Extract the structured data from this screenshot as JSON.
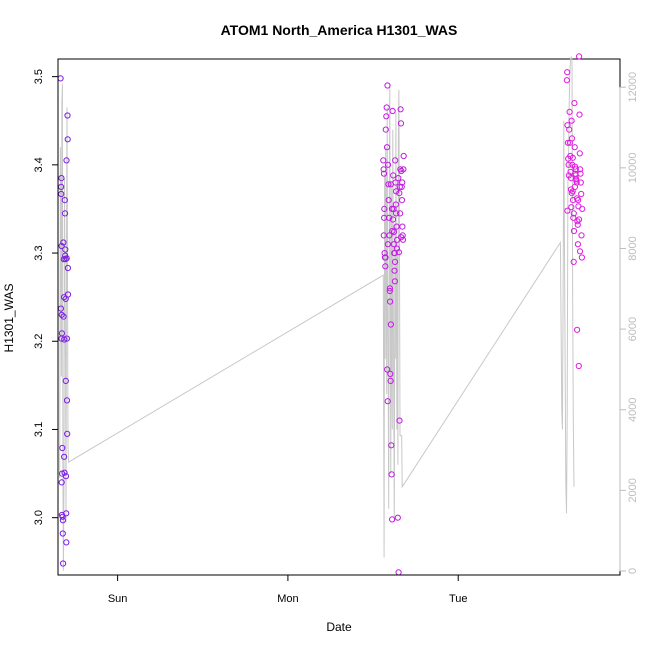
{
  "chart_data": {
    "type": "scatter",
    "title": "ATOM1 North_America H1301_WAS",
    "xlabel": "Date",
    "ylabel": "H1301_WAS",
    "x_ticks": [
      "Sun",
      "Mon",
      "Tue"
    ],
    "xlim": [
      -1.35,
      1.95
    ],
    "ylim": [
      2.935,
      3.52
    ],
    "y_ticks": [
      3.0,
      3.1,
      3.2,
      3.3,
      3.4,
      3.5
    ],
    "y2lim": [
      -100,
      12700
    ],
    "y2_ticks": [
      0,
      2000,
      4000,
      6000,
      8000,
      10000,
      12000
    ],
    "grid": false,
    "colors": {
      "series_start": "#7b1ce6",
      "series_end": "#e21ae2",
      "secondary_line": "#c8c8c8",
      "axis": "#000000",
      "secondary_axis": "#bdbdbd"
    },
    "series": [
      {
        "values": [
          [
            -1.335,
            3.498
          ],
          [
            -1.33,
            3.385
          ],
          [
            -1.332,
            3.375
          ],
          [
            -1.331,
            3.367
          ],
          [
            -1.329,
            3.308
          ],
          [
            -1.333,
            3.237
          ],
          [
            -1.328,
            3.23
          ],
          [
            -1.327,
            3.209
          ],
          [
            -1.33,
            3.203
          ],
          [
            -1.325,
            3.079
          ],
          [
            -1.326,
            3.05
          ],
          [
            -1.328,
            3.04
          ],
          [
            -1.327,
            3.003
          ],
          [
            -1.323,
            3.001
          ],
          [
            -1.32,
            2.948
          ],
          [
            -1.322,
            2.982
          ],
          [
            -1.321,
            2.997
          ],
          [
            -1.318,
            3.312
          ],
          [
            -1.316,
            3.293
          ],
          [
            -1.315,
            3.25
          ],
          [
            -1.317,
            3.228
          ],
          [
            -1.313,
            3.202
          ],
          [
            -1.314,
            3.069
          ],
          [
            -1.312,
            3.051
          ],
          [
            -1.31,
            3.36
          ],
          [
            -1.309,
            3.345
          ],
          [
            -1.307,
            3.304
          ],
          [
            -1.308,
            3.297
          ],
          [
            -1.306,
            3.293
          ],
          [
            -1.305,
            3.248
          ],
          [
            -1.304,
            3.155
          ],
          [
            -1.303,
            3.047
          ],
          [
            -1.302,
            3.005
          ],
          [
            -1.301,
            2.972
          ],
          [
            -1.3,
            3.405
          ],
          [
            -1.299,
            3.294
          ],
          [
            -1.298,
            3.203
          ],
          [
            -1.297,
            3.133
          ],
          [
            -1.296,
            3.095
          ],
          [
            -1.294,
            3.456
          ],
          [
            -1.293,
            3.429
          ],
          [
            -1.292,
            3.283
          ],
          [
            -1.291,
            3.253
          ]
        ]
      },
      {
        "values": [
          [
            0.56,
            3.405
          ],
          [
            0.562,
            3.395
          ],
          [
            0.564,
            3.39
          ],
          [
            0.566,
            3.35
          ],
          [
            0.565,
            3.34
          ],
          [
            0.563,
            3.32
          ],
          [
            0.568,
            3.3
          ],
          [
            0.57,
            3.295
          ],
          [
            0.572,
            3.285
          ],
          [
            0.575,
            3.44
          ],
          [
            0.578,
            3.455
          ],
          [
            0.58,
            3.465
          ],
          [
            0.582,
            3.42
          ],
          [
            0.585,
            3.49
          ],
          [
            0.588,
            3.4
          ],
          [
            0.59,
            3.378
          ],
          [
            0.592,
            3.36
          ],
          [
            0.594,
            3.34
          ],
          [
            0.596,
            3.32
          ],
          [
            0.598,
            3.257
          ],
          [
            0.6,
            3.245
          ],
          [
            0.583,
            3.168
          ],
          [
            0.586,
            3.132
          ],
          [
            0.601,
            3.163
          ],
          [
            0.603,
            3.155
          ],
          [
            0.605,
            3.219
          ],
          [
            0.607,
            3.082
          ],
          [
            0.609,
            3.049
          ],
          [
            0.612,
            2.998
          ],
          [
            0.615,
            3.461
          ],
          [
            0.618,
            3.388
          ],
          [
            0.62,
            3.35
          ],
          [
            0.622,
            3.31
          ],
          [
            0.624,
            3.3
          ],
          [
            0.626,
            3.28
          ],
          [
            0.628,
            3.268
          ],
          [
            0.63,
            3.405
          ],
          [
            0.632,
            3.38
          ],
          [
            0.634,
            3.355
          ],
          [
            0.636,
            3.345
          ],
          [
            0.638,
            3.33
          ],
          [
            0.64,
            3.305
          ],
          [
            0.645,
            3.0
          ],
          [
            0.65,
            2.938
          ],
          [
            0.655,
            3.11
          ],
          [
            0.652,
            3.301
          ],
          [
            0.657,
            3.375
          ],
          [
            0.66,
            3.395
          ],
          [
            0.662,
            3.463
          ],
          [
            0.664,
            3.447
          ],
          [
            0.666,
            3.393
          ],
          [
            0.668,
            3.375
          ],
          [
            0.67,
            3.36
          ],
          [
            0.672,
            3.33
          ],
          [
            0.674,
            3.32
          ],
          [
            0.676,
            3.315
          ],
          [
            0.678,
            3.395
          ],
          [
            0.68,
            3.41
          ],
          [
            0.605,
            3.378
          ],
          [
            0.611,
            3.35
          ],
          [
            0.617,
            3.338
          ],
          [
            0.623,
            3.324
          ],
          [
            0.629,
            3.29
          ],
          [
            0.635,
            3.37
          ],
          [
            0.641,
            3.315
          ],
          [
            0.648,
            3.385
          ],
          [
            0.654,
            3.368
          ],
          [
            0.659,
            3.345
          ],
          [
            0.665,
            3.318
          ],
          [
            0.671,
            3.38
          ],
          [
            0.573,
            3.295
          ],
          [
            0.587,
            3.31
          ],
          [
            0.599,
            3.26
          ],
          [
            0.613,
            3.325
          ],
          [
            0.627,
            3.3
          ]
        ]
      },
      {
        "values": [
          [
            1.64,
            3.505
          ],
          [
            1.638,
            3.496
          ],
          [
            1.642,
            3.445
          ],
          [
            1.644,
            3.425
          ],
          [
            1.646,
            3.407
          ],
          [
            1.648,
            3.4
          ],
          [
            1.65,
            3.388
          ],
          [
            1.652,
            3.44
          ],
          [
            1.654,
            3.46
          ],
          [
            1.656,
            3.425
          ],
          [
            1.658,
            3.41
          ],
          [
            1.66,
            3.392
          ],
          [
            1.662,
            3.372
          ],
          [
            1.664,
            3.352
          ],
          [
            1.641,
            3.348
          ],
          [
            1.666,
            3.45
          ],
          [
            1.668,
            3.43
          ],
          [
            1.67,
            3.4
          ],
          [
            1.672,
            3.37
          ],
          [
            1.674,
            3.36
          ],
          [
            1.676,
            3.34
          ],
          [
            1.678,
            3.29
          ],
          [
            1.68,
            3.325
          ],
          [
            1.682,
            3.47
          ],
          [
            1.684,
            3.42
          ],
          [
            1.686,
            3.398
          ],
          [
            1.688,
            3.39
          ],
          [
            1.69,
            3.388
          ],
          [
            1.692,
            3.384
          ],
          [
            1.694,
            3.382
          ],
          [
            1.696,
            3.38
          ],
          [
            1.698,
            3.213
          ],
          [
            1.7,
            3.336
          ],
          [
            1.702,
            3.332
          ],
          [
            1.704,
            3.36
          ],
          [
            1.706,
            3.353
          ],
          [
            1.708,
            3.172
          ],
          [
            1.71,
            3.523
          ],
          [
            1.712,
            3.457
          ],
          [
            1.714,
            3.413
          ],
          [
            1.716,
            3.395
          ],
          [
            1.718,
            3.39
          ],
          [
            1.72,
            3.38
          ],
          [
            1.722,
            3.367
          ],
          [
            1.724,
            3.32
          ],
          [
            1.726,
            3.295
          ],
          [
            1.728,
            3.35
          ],
          [
            1.663,
            3.385
          ],
          [
            1.667,
            3.368
          ],
          [
            1.673,
            3.408
          ],
          [
            1.679,
            3.345
          ],
          [
            1.685,
            3.375
          ],
          [
            1.691,
            3.395
          ],
          [
            1.697,
            3.362
          ],
          [
            1.703,
            3.31
          ],
          [
            1.709,
            3.338
          ],
          [
            1.715,
            3.302
          ]
        ]
      }
    ],
    "secondary_line": {
      "values": [
        [
          -1.34,
          3.045
        ],
        [
          -1.336,
          3.42
        ],
        [
          -1.333,
          3.35
        ],
        [
          -1.33,
          3.16
        ],
        [
          -1.327,
          3.47
        ],
        [
          -1.324,
          3.492
        ],
        [
          -1.321,
          3.05
        ],
        [
          -1.318,
          2.94
        ],
        [
          -1.315,
          3.05
        ],
        [
          -1.312,
          3.385
        ],
        [
          -1.309,
          3.26
        ],
        [
          -1.306,
          3.18
        ],
        [
          -1.303,
          2.995
        ],
        [
          -1.3,
          3.3
        ],
        [
          -1.297,
          3.465
        ],
        [
          -1.294,
          3.28
        ],
        [
          -1.291,
          3.08
        ],
        [
          -1.288,
          3.063
        ],
        [
          0.56,
          3.275
        ],
        [
          0.565,
          2.955
        ],
        [
          0.568,
          3.39
        ],
        [
          0.571,
          3.18
        ],
        [
          0.574,
          3.42
        ],
        [
          0.577,
          3.3
        ],
        [
          0.58,
          3.14
        ],
        [
          0.583,
          3.465
        ],
        [
          0.586,
          3.25
        ],
        [
          0.589,
          3.15
        ],
        [
          0.592,
          3.01
        ],
        [
          0.595,
          3.32
        ],
        [
          0.598,
          3.49
        ],
        [
          0.601,
          3.2
        ],
        [
          0.604,
          3.05
        ],
        [
          0.607,
          3.38
        ],
        [
          0.61,
          3.18
        ],
        [
          0.613,
          3.1
        ],
        [
          0.616,
          3.44
        ],
        [
          0.619,
          3.25
        ],
        [
          0.622,
          3.12
        ],
        [
          0.625,
          2.995
        ],
        [
          0.628,
          3.33
        ],
        [
          0.631,
          3.18
        ],
        [
          0.634,
          3.46
        ],
        [
          0.637,
          3.24
        ],
        [
          0.64,
          3.1
        ],
        [
          0.643,
          3.3
        ],
        [
          0.646,
          3.06
        ],
        [
          0.649,
          3.44
        ],
        [
          0.652,
          3.485
        ],
        [
          0.655,
          3.3
        ],
        [
          0.658,
          3.093
        ],
        [
          0.668,
          3.093
        ],
        [
          0.671,
          3.035
        ],
        [
          1.6,
          3.312
        ],
        [
          1.608,
          3.12
        ],
        [
          1.612,
          3.1
        ],
        [
          1.616,
          3.25
        ],
        [
          1.62,
          3.45
        ],
        [
          1.624,
          3.3
        ],
        [
          1.628,
          3.16
        ],
        [
          1.632,
          3.04
        ],
        [
          1.636,
          3.005
        ],
        [
          1.64,
          3.12
        ],
        [
          1.644,
          3.38
        ],
        [
          1.648,
          3.41
        ],
        [
          1.652,
          3.47
        ],
        [
          1.656,
          3.505
        ],
        [
          1.66,
          3.52
        ],
        [
          1.664,
          3.522
        ],
        [
          1.668,
          3.52
        ],
        [
          1.672,
          3.24
        ],
        [
          1.676,
          3.11
        ],
        [
          1.68,
          3.035
        ]
      ]
    }
  }
}
